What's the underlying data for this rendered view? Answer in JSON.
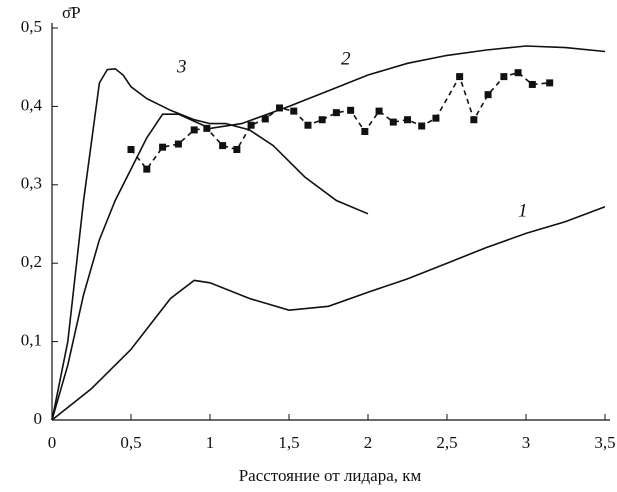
{
  "chart_data": {
    "type": "line",
    "x_label": "Расстояние от лидара, км",
    "y_label": "σ̄P",
    "xlim": [
      0,
      3.5
    ],
    "ylim": [
      0,
      0.5
    ],
    "xticks": [
      0,
      {
        "value": 0.5,
        "label": "0,5"
      },
      1,
      {
        "value": 1.5,
        "label": "1,5"
      },
      2,
      {
        "value": 2.5,
        "label": "2,5"
      },
      3,
      {
        "value": 3.5,
        "label": "3,5"
      }
    ],
    "yticks": [
      0,
      {
        "value": 0.1,
        "label": "0,1"
      },
      {
        "value": 0.2,
        "label": "0,2"
      },
      {
        "value": 0.3,
        "label": "0,3"
      },
      {
        "value": 0.4,
        "label": "0,4"
      },
      {
        "value": 0.5,
        "label": "0,5"
      }
    ],
    "series": [
      {
        "name": "1",
        "color": "#111111",
        "style": "solid",
        "x": [
          0,
          0.25,
          0.5,
          0.75,
          0.9,
          1.0,
          1.25,
          1.5,
          1.75,
          2.0,
          2.25,
          2.5,
          2.75,
          3.0,
          3.25,
          3.5
        ],
        "values": [
          0,
          0.04,
          0.09,
          0.155,
          0.178,
          0.175,
          0.155,
          0.14,
          0.145,
          0.163,
          0.18,
          0.2,
          0.22,
          0.238,
          0.253,
          0.272
        ]
      },
      {
        "name": "2",
        "color": "#111111",
        "style": "solid",
        "x": [
          0,
          0.1,
          0.2,
          0.3,
          0.4,
          0.5,
          0.6,
          0.7,
          0.8,
          1.0,
          1.2,
          1.5,
          1.75,
          2.0,
          2.25,
          2.5,
          2.75,
          3.0,
          3.25,
          3.5
        ],
        "values": [
          0,
          0.07,
          0.16,
          0.23,
          0.28,
          0.32,
          0.36,
          0.39,
          0.39,
          0.372,
          0.378,
          0.4,
          0.42,
          0.44,
          0.455,
          0.465,
          0.472,
          0.477,
          0.475,
          0.47
        ]
      },
      {
        "name": "3",
        "color": "#111111",
        "style": "solid",
        "x": [
          0,
          0.1,
          0.2,
          0.3,
          0.35,
          0.4,
          0.45,
          0.5,
          0.6,
          0.75,
          0.9,
          1.0,
          1.1,
          1.25,
          1.4,
          1.6,
          1.8,
          2.0
        ],
        "values": [
          0,
          0.1,
          0.28,
          0.43,
          0.447,
          0.448,
          0.44,
          0.425,
          0.41,
          0.395,
          0.383,
          0.378,
          0.378,
          0.37,
          0.35,
          0.31,
          0.28,
          0.263
        ]
      },
      {
        "color": "#111111",
        "style": "dashed",
        "markers": true,
        "x": [
          0.5,
          0.6,
          0.7,
          0.8,
          0.9,
          0.98,
          1.08,
          1.17,
          1.26,
          1.35,
          1.44,
          1.53,
          1.62,
          1.71,
          1.8,
          1.89,
          1.98,
          2.07,
          2.16,
          2.25,
          2.34,
          2.43,
          2.58,
          2.67,
          2.76,
          2.86,
          2.95,
          3.04,
          3.15
        ],
        "values": [
          0.345,
          0.32,
          0.348,
          0.352,
          0.37,
          0.372,
          0.35,
          0.345,
          0.376,
          0.384,
          0.398,
          0.394,
          0.376,
          0.383,
          0.392,
          0.395,
          0.368,
          0.394,
          0.38,
          0.383,
          0.375,
          0.385,
          0.438,
          0.383,
          0.415,
          0.438,
          0.443,
          0.428,
          0.43
        ]
      }
    ]
  }
}
